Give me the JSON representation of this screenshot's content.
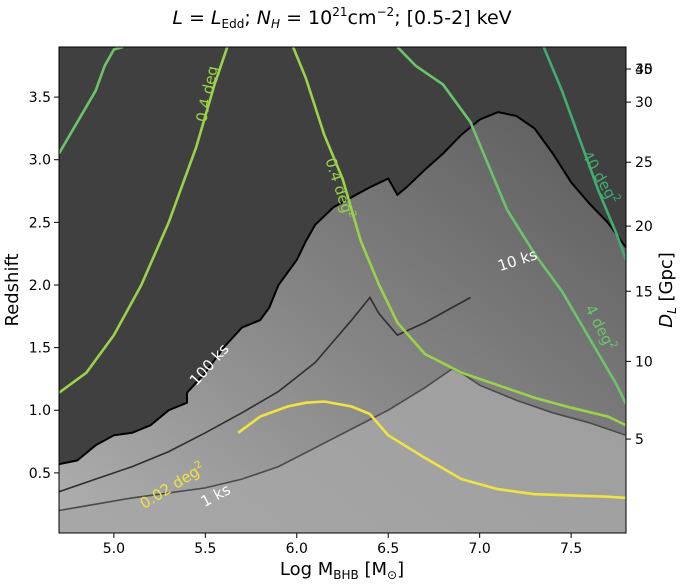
{
  "chart_data": {
    "type": "contour",
    "title": "L = L_Edd; N_H = 10^21 cm^-2; [0.5-2] keV",
    "title_parts": {
      "L": "L",
      "eq1": " = ",
      "L2": "L",
      "edd": "Edd",
      "sep1": "; ",
      "N": "N",
      "H": "H",
      "eq2": " = 10",
      "exp21": "21",
      "cm": "cm",
      "expm2": "−2",
      "tail": "; [0.5-2] keV"
    },
    "xlabel": "Log M_BHB [M_⊙]",
    "xlabel_parts": {
      "main": "Log M",
      "sub": "BHB",
      "open": " [M",
      "sun": "⊙",
      "close": "]"
    },
    "ylabel": "Redshift",
    "y2label": "D_L [Gpc]",
    "y2label_parts": {
      "D": "D",
      "sub": "L",
      "rest": " [Gpc]"
    },
    "xlim": [
      4.7,
      7.8
    ],
    "ylim": [
      0.02,
      3.9
    ],
    "xticks": [
      "5.0",
      "5.5",
      "6.0",
      "6.5",
      "7.0",
      "7.5"
    ],
    "yticks": [
      "0.5",
      "1.0",
      "1.5",
      "2.0",
      "2.5",
      "3.0",
      "3.5"
    ],
    "y2ticks": [
      "5",
      "10",
      "15",
      "20",
      "25",
      "30",
      "35",
      "40"
    ],
    "y2tick_redshifts": [
      0.77,
      1.39,
      1.95,
      2.47,
      2.98,
      3.46,
      3.93,
      4.38
    ],
    "exposure_contours": [
      {
        "label": "100 ks",
        "color": "#000000",
        "label_color": "#ffffff",
        "x": [
          4.7,
          4.8,
          4.9,
          5.0,
          5.1,
          5.2,
          5.3,
          5.4,
          5.4,
          5.5,
          5.6,
          5.7,
          5.8,
          5.85,
          5.9,
          6.0,
          6.05,
          6.1,
          6.2,
          6.3,
          6.4,
          6.5,
          6.55,
          6.6,
          6.7,
          6.8,
          6.9,
          7.0,
          7.1,
          7.2,
          7.3,
          7.4,
          7.5,
          7.6,
          7.7,
          7.8
        ],
        "y": [
          0.57,
          0.6,
          0.72,
          0.8,
          0.82,
          0.88,
          1.0,
          1.06,
          1.14,
          1.3,
          1.5,
          1.66,
          1.72,
          1.82,
          2.0,
          2.2,
          2.35,
          2.48,
          2.62,
          2.7,
          2.78,
          2.85,
          2.72,
          2.78,
          2.92,
          3.05,
          3.2,
          3.32,
          3.38,
          3.35,
          3.25,
          3.05,
          2.82,
          2.65,
          2.5,
          2.3
        ]
      },
      {
        "label": "10 ks",
        "color": "#2e2e2e",
        "label_color": "#ffffff",
        "x": [
          4.7,
          4.9,
          5.1,
          5.3,
          5.5,
          5.7,
          5.9,
          6.1,
          6.3,
          6.4,
          6.45,
          6.55,
          6.7,
          6.85,
          6.95
        ],
        "y": [
          0.35,
          0.45,
          0.55,
          0.67,
          0.82,
          0.98,
          1.15,
          1.38,
          1.72,
          1.9,
          1.77,
          1.6,
          1.7,
          1.82,
          1.9
        ]
      },
      {
        "label": "1 ks",
        "color": "#4a4a4a",
        "label_color": "#ffffff",
        "x": [
          4.7,
          4.9,
          5.1,
          5.3,
          5.5,
          5.7,
          5.9,
          6.1,
          6.3,
          6.5,
          6.7,
          6.85,
          6.92,
          7.0,
          7.2,
          7.4,
          7.6,
          7.8
        ],
        "y": [
          0.2,
          0.25,
          0.3,
          0.34,
          0.38,
          0.45,
          0.55,
          0.7,
          0.85,
          1.0,
          1.18,
          1.33,
          1.28,
          1.2,
          1.08,
          0.98,
          0.9,
          0.8
        ]
      }
    ],
    "area_contours": [
      {
        "label": "0.02 deg²",
        "label_main": "0.02 deg",
        "label_exp": "2",
        "color": "#f0e442",
        "x": [
          5.68,
          5.8,
          5.95,
          6.05,
          6.15,
          6.3,
          6.4,
          6.5,
          6.7,
          6.9,
          7.1,
          7.3,
          7.5,
          7.7,
          7.8
        ],
        "y": [
          0.82,
          0.95,
          1.03,
          1.06,
          1.07,
          1.03,
          0.97,
          0.8,
          0.62,
          0.45,
          0.37,
          0.33,
          0.32,
          0.31,
          0.3
        ]
      },
      {
        "label": "0.4 deg²",
        "label_main": "0.4 deg",
        "label_exp": "2",
        "color": "#9ad24a",
        "x": [
          4.7,
          4.85,
          5.0,
          5.15,
          5.3,
          5.45,
          5.55,
          5.62
        ],
        "y": [
          1.14,
          1.3,
          1.6,
          2.0,
          2.5,
          3.1,
          3.6,
          3.9
        ]
      },
      {
        "label": "0.4 deg²",
        "label_main": "0.4 deg",
        "label_exp": "2",
        "color": "#9ad24a",
        "x": [
          5.98,
          6.05,
          6.15,
          6.25,
          6.35,
          6.45,
          6.55,
          6.7,
          6.9,
          7.1,
          7.3,
          7.5,
          7.7,
          7.8
        ],
        "y": [
          3.9,
          3.65,
          3.2,
          2.85,
          2.35,
          2.0,
          1.7,
          1.45,
          1.3,
          1.2,
          1.1,
          1.02,
          0.95,
          0.88
        ]
      },
      {
        "label": "4 deg²",
        "label_main": "4 deg",
        "label_exp": "2",
        "color": "#6cc46a",
        "x": [
          4.7,
          4.8,
          4.9,
          4.95,
          5.0,
          5.05
        ],
        "y": [
          3.05,
          3.3,
          3.55,
          3.75,
          3.88,
          3.9
        ]
      },
      {
        "label": "4 deg²",
        "label_main": "4 deg",
        "label_exp": "2",
        "color": "#6cc46a",
        "x": [
          6.55,
          6.65,
          6.8,
          6.95,
          7.05,
          7.15,
          7.3,
          7.45,
          7.55,
          7.65,
          7.75,
          7.8
        ],
        "y": [
          3.9,
          3.75,
          3.6,
          3.3,
          2.95,
          2.6,
          2.25,
          1.95,
          1.7,
          1.45,
          1.2,
          1.05
        ]
      },
      {
        "label": "40 deg²",
        "label_main": "40 deg",
        "label_exp": "2",
        "color": "#3fae6e",
        "x": [
          7.35,
          7.45,
          7.55,
          7.65,
          7.75,
          7.8
        ],
        "y": [
          3.9,
          3.55,
          3.15,
          2.75,
          2.4,
          2.2
        ]
      }
    ],
    "labels": {
      "exp_100": "100 ks",
      "exp_10": "10 ks",
      "exp_1": "1 ks",
      "area_004_main": "0.4 deg",
      "area_04_main": "0.4 deg",
      "area_04_exp": "2",
      "area_002_main": "0.02 deg",
      "area_002_exp": "2",
      "area_4_main": "4 deg",
      "area_4_exp": "2",
      "area_40_main": "40 deg",
      "area_40_exp": "2"
    },
    "legend": "none",
    "grid": false,
    "colors": {
      "background_dark": "#404040",
      "background_light": "#a8a8a8",
      "contour_100ks": "#000000",
      "yellow": "#f0e442",
      "lightgreen": "#9ad24a",
      "green": "#6cc46a",
      "teal": "#3fae6e"
    }
  }
}
